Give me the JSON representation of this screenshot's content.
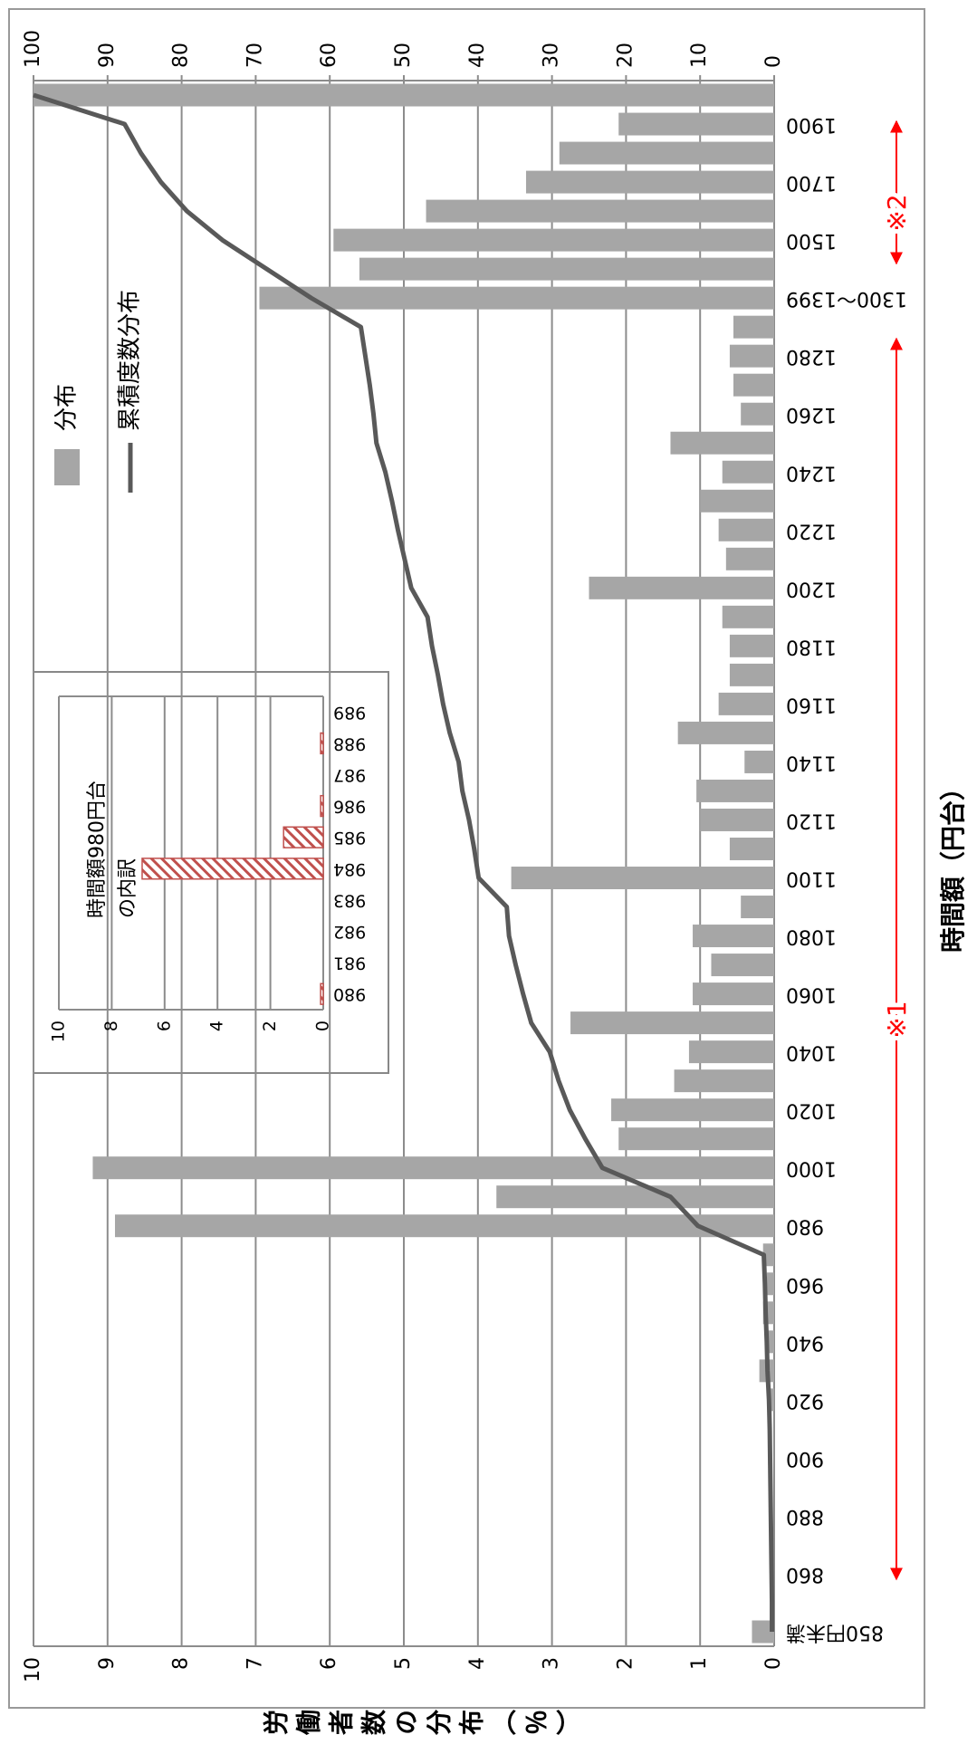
{
  "chart_data": [
    {
      "type": "bar",
      "x_label": "時間額（円台）",
      "y_label": "労働者数の分布（％）",
      "categories": [
        "850円未満",
        null,
        "860",
        null,
        "880",
        null,
        "900",
        null,
        "920",
        null,
        "940",
        null,
        "960",
        null,
        "980",
        null,
        "1000",
        null,
        "1020",
        null,
        "1040",
        null,
        "1060",
        null,
        "1080",
        null,
        "1100",
        null,
        "1120",
        null,
        "1140",
        null,
        "1160",
        null,
        "1180",
        null,
        "1200",
        null,
        "1220",
        null,
        "1240",
        null,
        "1260",
        null,
        "1280",
        null,
        "1300～1399",
        null,
        "1500",
        null,
        "1700",
        null,
        "1900",
        null
      ],
      "series": [
        {
          "name": "分布",
          "type": "bar",
          "color": "#a6a6a6",
          "values": [
            0.3,
            0,
            0,
            0,
            0,
            0,
            0,
            0,
            0.05,
            0.2,
            0.1,
            0.15,
            0.1,
            0.15,
            8.9,
            3.75,
            9.2,
            2.1,
            2.2,
            1.35,
            1.15,
            2.75,
            1.1,
            0.85,
            1.1,
            0.45,
            3.55,
            0.6,
            1.0,
            1.05,
            0.4,
            1.3,
            0.75,
            0.6,
            0.6,
            0.7,
            2.5,
            0.65,
            0.75,
            1.0,
            0.7,
            1.4,
            0.45,
            0.55,
            0.6,
            0.55,
            6.95,
            5.6,
            5.95,
            4.7,
            3.35,
            2.9,
            2.1,
            10
          ]
        },
        {
          "name": "累積度数分布",
          "type": "line",
          "axis": "y2",
          "color": "#595959",
          "values": [
            0.3,
            0.3,
            0.35,
            0.4,
            0.45,
            0.5,
            0.55,
            0.6,
            0.7,
            0.9,
            1.0,
            1.15,
            1.25,
            1.4,
            10.3,
            14,
            23.2,
            25.5,
            27.6,
            29.1,
            30.3,
            32.8,
            33.9,
            34.9,
            35.8,
            36.1,
            39.9,
            40.5,
            41.2,
            42.1,
            42.6,
            43.8,
            44.7,
            45.4,
            46.2,
            46.8,
            49.0,
            49.9,
            50.8,
            51.6,
            52.5,
            53.7,
            54.1,
            54.6,
            55.2,
            55.8,
            62.5,
            68.5,
            74.5,
            79.3,
            82.8,
            85.5,
            87.7,
            100
          ]
        }
      ],
      "ylim": [
        0,
        10
      ],
      "yticks": [
        0,
        1,
        2,
        3,
        4,
        5,
        6,
        7,
        8,
        9,
        10
      ],
      "y2lim": [
        0,
        100
      ],
      "y2ticks": [
        0,
        10,
        20,
        30,
        40,
        50,
        60,
        70,
        80,
        90,
        100
      ],
      "grid": true,
      "legend": "top-right",
      "annotations": [
        "※1",
        "※2"
      ]
    },
    {
      "type": "bar",
      "title": [
        "時間額980円台",
        "の内訳"
      ],
      "categories": [
        "980",
        "981",
        "982",
        "983",
        "984",
        "985",
        "986",
        "987",
        "988",
        "989"
      ],
      "values": [
        0.1,
        0,
        0,
        0,
        6.85,
        1.5,
        0.1,
        0,
        0.1,
        0
      ],
      "color": "#c0504d",
      "ylim": [
        0,
        10
      ],
      "yticks": [
        0,
        2,
        4,
        6,
        8,
        10
      ],
      "grid": true
    }
  ]
}
